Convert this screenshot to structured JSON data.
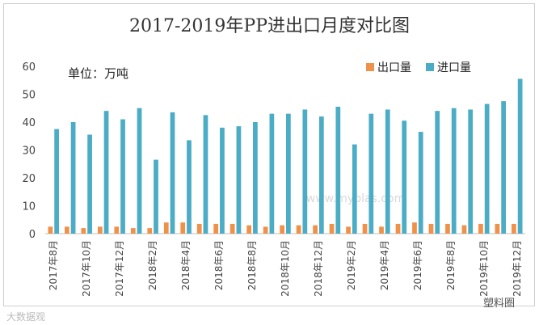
{
  "chart_data": {
    "type": "bar",
    "title": "2017-2019年PP进出口月度对比图",
    "unit_label": "单位：万吨",
    "ylim": [
      0,
      60
    ],
    "yticks": [
      0,
      10,
      20,
      30,
      40,
      50,
      60
    ],
    "categories": [
      "2017年8月",
      "2017年9月",
      "2017年10月",
      "2017年11月",
      "2017年12月",
      "2018年1月",
      "2018年2月",
      "2018年3月",
      "2018年4月",
      "2018年5月",
      "2018年6月",
      "2018年7月",
      "2018年8月",
      "2018年9月",
      "2018年10月",
      "2018年11月",
      "2018年12月",
      "2019年1月",
      "2019年2月",
      "2019年3月",
      "2019年4月",
      "2019年5月",
      "2019年6月",
      "2019年7月",
      "2019年8月",
      "2019年9月",
      "2019年10月",
      "2019年11月",
      "2019年12月"
    ],
    "xtick_labels": [
      "2017年8月",
      "2017年10月",
      "2017年12月",
      "2018年2月",
      "2018年4月",
      "2018年6月",
      "2018年8月",
      "2018年10月",
      "2018年12月",
      "2019年2月",
      "2019年4月",
      "2019年6月",
      "2019年8月",
      "2019年10月",
      "2019年12月"
    ],
    "series": [
      {
        "name": "出口量",
        "color": "#F0914A",
        "values": [
          2.5,
          2.5,
          2,
          2.5,
          2.5,
          2,
          2,
          4,
          4,
          3.5,
          3.5,
          3.5,
          3,
          2.5,
          3,
          3,
          3,
          3.5,
          2.5,
          3.5,
          2.5,
          3.5,
          4,
          3.5,
          3.5,
          3,
          3.5,
          3.5,
          3.5
        ]
      },
      {
        "name": "进口量",
        "color": "#4BACC6",
        "values": [
          37.5,
          40,
          35.5,
          44,
          41,
          45,
          26.5,
          43.5,
          33.5,
          42.5,
          38,
          38.5,
          40,
          43,
          43,
          44.5,
          42,
          45.5,
          32,
          43,
          44.5,
          40.5,
          36.5,
          44,
          45,
          44.5,
          46.5,
          47.5,
          55.5
        ]
      }
    ]
  },
  "watermark": {
    "site": "www.myplas.com",
    "left_text": "大数据观",
    "right_text": "塑料圈"
  }
}
